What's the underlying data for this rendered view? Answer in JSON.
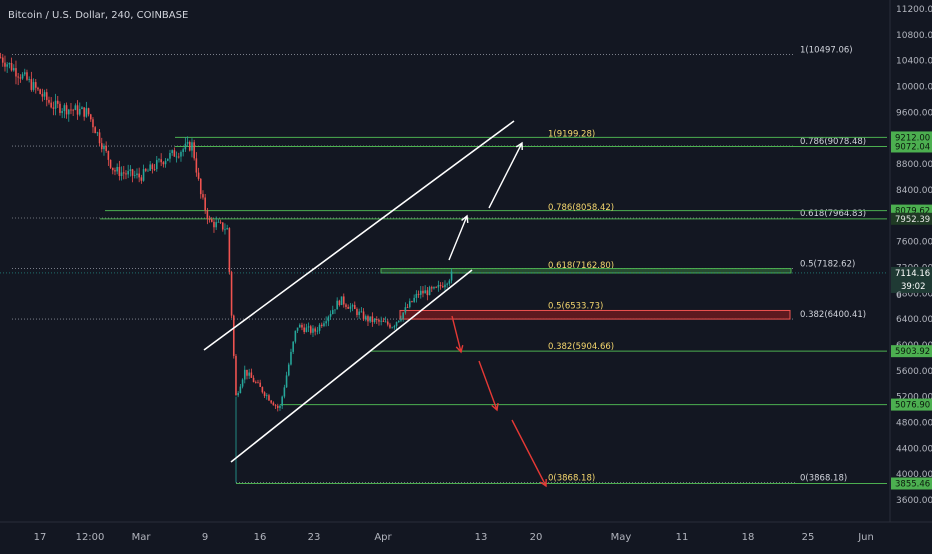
{
  "header": {
    "symbol_title": "Bitcoin / U.S. Dollar, 240, COINBASE"
  },
  "colors": {
    "background": "#131722",
    "bull": "#26a69a",
    "bear": "#ef5350",
    "fib_green": "#4caf50",
    "fib_label_green": "#f5d76e",
    "fib_label_white": "#d1d4dc",
    "red_zone": "#b71c1c",
    "axis_text": "#b2b5be",
    "channel": "#ffffff",
    "arrow_up": "#ffffff",
    "arrow_down": "#e53935",
    "last_price_bg": "#26a69a"
  },
  "chart_data": {
    "type": "candlestick",
    "title": "Bitcoin / U.S. Dollar, 240, COINBASE",
    "x_tick_labels": [
      "17",
      "12:00",
      "Mar",
      "9",
      "16",
      "23",
      "Apr",
      "13",
      "20",
      "May",
      "11",
      "18",
      "25",
      "Jun"
    ],
    "y_ticks": [
      3600,
      4000,
      4400,
      4800,
      5200,
      5600,
      6000,
      6400,
      6800,
      7200,
      7600,
      8000,
      8400,
      8800,
      9200,
      9600,
      10000,
      10400,
      10800,
      11200
    ],
    "y_tick_labels": [
      "3600.00",
      "4000.00",
      "4400.00",
      "4800.00",
      "5200.00",
      "5600.00",
      "6000.00",
      "6400.00",
      "6800.00",
      "7200.00",
      "7600.00",
      "8000.00",
      "8400.00",
      "8800.00",
      "9200.00",
      "9600.00",
      "10000.00",
      "10400.00",
      "10800.00",
      "11200.00"
    ],
    "ylim": [
      3440,
      11380
    ],
    "price_series_x_dates": [
      "Feb 14",
      "Feb 17",
      "Feb 20",
      "Feb 24",
      "Feb 27",
      "Mar 1",
      "Mar 4",
      "Mar 7",
      "Mar 8",
      "Mar 9",
      "Mar 11",
      "Mar 12",
      "Mar 13",
      "Mar 15",
      "Mar 17",
      "Mar 19",
      "Mar 21",
      "Mar 24",
      "Mar 27",
      "Mar 30",
      "Apr 2",
      "Apr 4",
      "Apr 6"
    ],
    "price_series_close": [
      10450,
      10100,
      9700,
      9600,
      8700,
      8600,
      8900,
      9100,
      8300,
      7900,
      7800,
      5200,
      5600,
      5300,
      5000,
      6300,
      6200,
      6700,
      6400,
      6300,
      6800,
      6850,
      7114
    ],
    "fib_levels_left": [
      {
        "label": "1(9199.28)",
        "value": 9199.28
      },
      {
        "label": "0.786(8058.42)",
        "value": 8058.42
      },
      {
        "label": "0.618(7162.80)",
        "value": 7162.8
      },
      {
        "label": "0.5(6533.73)",
        "value": 6533.73
      },
      {
        "label": "0.382(5904.66)",
        "value": 5904.66
      },
      {
        "label": "0(3868.18)",
        "value": 3868.18
      }
    ],
    "fib_levels_right": [
      {
        "label": "1(10497.06)",
        "value": 10497.06
      },
      {
        "label": "0.786(9078.48)",
        "value": 9078.48
      },
      {
        "label": "0.618(7964.83)",
        "value": 7964.83
      },
      {
        "label": "0.5(7182.62)",
        "value": 7182.62
      },
      {
        "label": "0.382(6400.41)",
        "value": 6400.41
      },
      {
        "label": "0(3868.18)",
        "value": 3868.18
      }
    ],
    "price_tags": [
      {
        "label": "9212.00",
        "value": 9212,
        "highlight": true
      },
      {
        "label": "9072.04",
        "value": 9072.04,
        "highlight": true
      },
      {
        "label": "8079.62",
        "value": 8079.62,
        "highlight": true
      },
      {
        "label": "7952.39",
        "value": 7952.39,
        "highlight": false
      },
      {
        "label": "7114.16",
        "value": 7114.16,
        "highlight": false
      },
      {
        "label": "5903.92",
        "value": 5903.92,
        "highlight": true
      },
      {
        "label": "5076.90",
        "value": 5076.9,
        "highlight": true
      },
      {
        "label": "3855.46",
        "value": 3855.46,
        "highlight": true
      }
    ],
    "last_price": {
      "value": 7114.16,
      "label": "7114.16",
      "countdown": "39:02",
      "partial_label": "6"
    },
    "red_zone": {
      "top": 6533.73,
      "bottom": 6400.41
    },
    "green_zone": {
      "top": 7182.62,
      "bottom": 7114.16
    }
  }
}
